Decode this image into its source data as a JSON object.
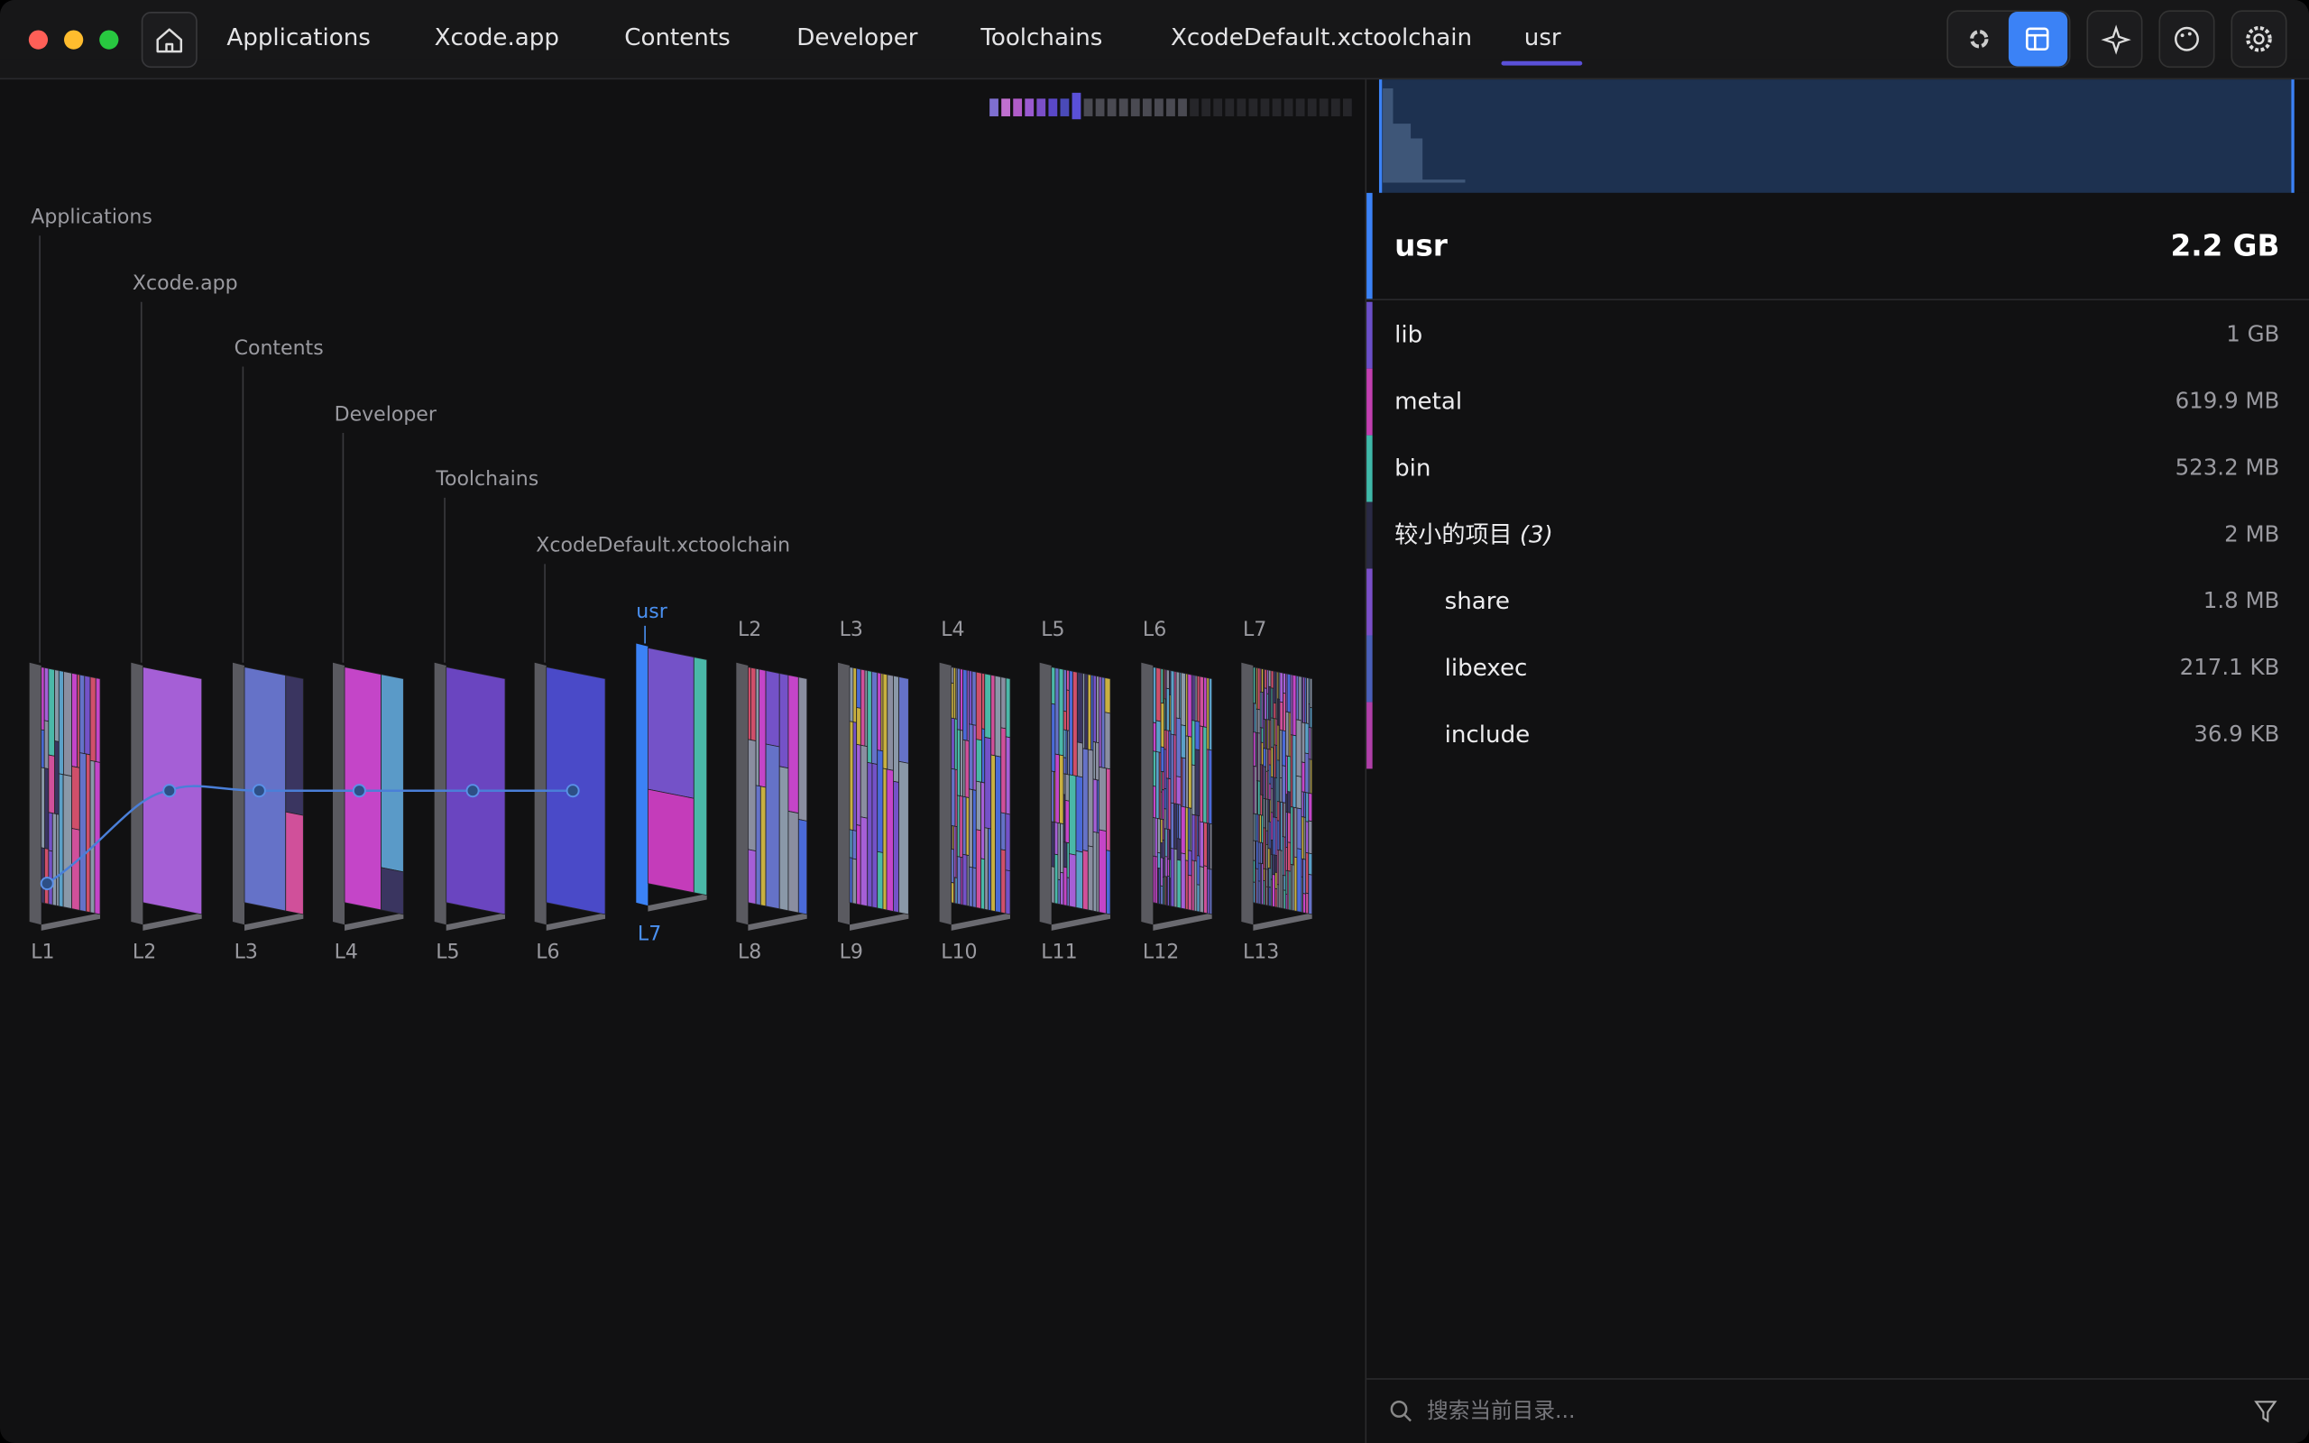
{
  "window": {
    "breadcrumbs": [
      "Applications",
      "Xcode.app",
      "Contents",
      "Developer",
      "Toolchains",
      "XcodeDefault.xctoolchain",
      "usr"
    ]
  },
  "graph": {
    "bottom_labels": [
      "L1",
      "L2",
      "L3",
      "L4",
      "L5",
      "L6",
      "L7",
      "L8",
      "L9",
      "L10",
      "L11",
      "L12",
      "L13"
    ],
    "top_labels": [
      "L2",
      "L3",
      "L4",
      "L5",
      "L6",
      "L7"
    ]
  },
  "panel": {
    "selected": {
      "name": "usr",
      "size": "2.2 GB"
    },
    "items": [
      {
        "name": "lib",
        "size": "1 GB"
      },
      {
        "name": "metal",
        "size": "619.9 MB"
      },
      {
        "name": "bin",
        "size": "523.2 MB"
      },
      {
        "name": "较小的项目",
        "count": "(3)",
        "size": "2 MB"
      },
      {
        "name": "share",
        "size": "1.8 MB"
      },
      {
        "name": "libexec",
        "size": "217.1 KB"
      },
      {
        "name": "include",
        "size": "36.9 KB"
      }
    ],
    "search_placeholder": "搜索当前目录..."
  }
}
